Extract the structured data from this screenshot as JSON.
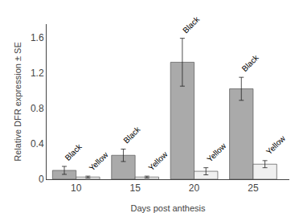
{
  "chart_data": {
    "type": "bar",
    "xlabel": "Days post anthesis",
    "ylabel": "Relative DFR expression ± SE",
    "categories": [
      "10",
      "15",
      "20",
      "25"
    ],
    "series": [
      {
        "name": "Black",
        "color": "#aaaaaa",
        "values": [
          0.1,
          0.27,
          1.32,
          1.02
        ],
        "errors": [
          0.045,
          0.07,
          0.27,
          0.13
        ]
      },
      {
        "name": "Yellow",
        "color": "#f0f0f0",
        "values": [
          0.025,
          0.025,
          0.09,
          0.17
        ],
        "errors": [
          0.01,
          0.01,
          0.04,
          0.04
        ]
      }
    ],
    "ylim": [
      0,
      1.75
    ],
    "yticks": [
      0,
      0.4,
      0.8,
      1.2,
      1.6
    ],
    "grid": false
  }
}
